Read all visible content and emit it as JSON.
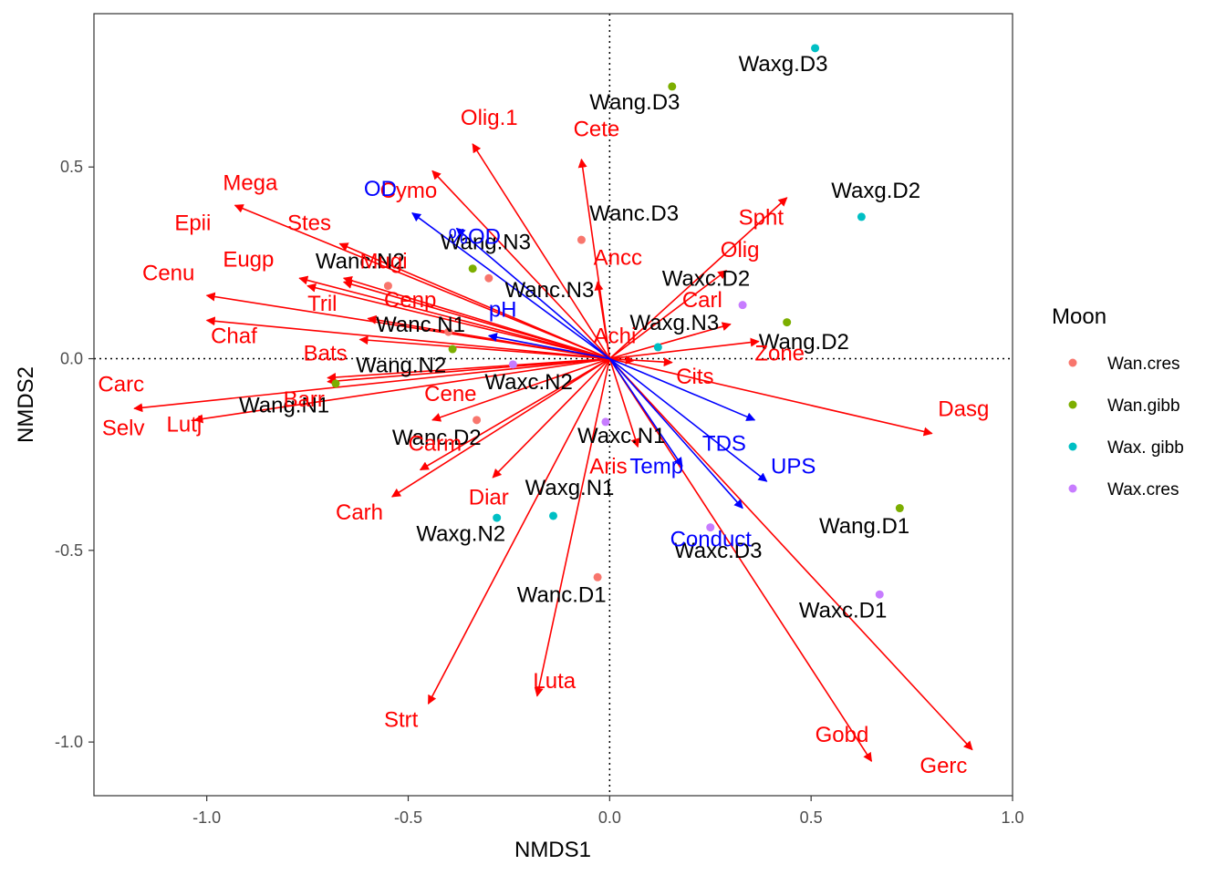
{
  "chart_data": {
    "type": "scatter",
    "xlabel": "NMDS1",
    "ylabel": "NMDS2",
    "xlim": [
      -1.28,
      1.0
    ],
    "ylim": [
      -1.14,
      0.9
    ],
    "x_ticks": [
      -1.0,
      -0.5,
      0.0,
      0.5,
      1.0
    ],
    "x_tick_labels": [
      "-1.0",
      "-0.5",
      "0.0",
      "0.5",
      "1.0"
    ],
    "y_ticks": [
      -1.0,
      -0.5,
      0.0,
      0.5
    ],
    "y_tick_labels": [
      "-1.0",
      "-0.5",
      "0.0",
      "0.5"
    ],
    "grid": false,
    "reference_lines": {
      "x": 0,
      "y": 0,
      "style": "dotted"
    },
    "legend": {
      "title": "Moon",
      "placement": "right",
      "entries": [
        {
          "name": "Wan.cres",
          "color": "#F8766D"
        },
        {
          "name": "Wan.gibb",
          "color": "#7CAE00"
        },
        {
          "name": "Wax. gibb",
          "color": "#00BFC4"
        },
        {
          "name": "Wax.cres",
          "color": "#C77CFF"
        }
      ]
    },
    "colors": {
      "species": "#ff0000",
      "environment": "#0000ff",
      "site_text": "#000000"
    },
    "sites": [
      {
        "label": "Wanc.D3",
        "group": "Wan.cres",
        "x": -0.07,
        "y": 0.31,
        "lx": -0.05,
        "ly": 0.36
      },
      {
        "label": "Wanc.N2",
        "group": "Wan.cres",
        "x": -0.55,
        "y": 0.19,
        "lx": -0.73,
        "ly": 0.235
      },
      {
        "label": "Wanc.N3",
        "group": "Wan.cres",
        "x": -0.3,
        "y": 0.21,
        "lx": -0.26,
        "ly": 0.16
      },
      {
        "label": "Wanc.N1",
        "group": "Wan.cres",
        "x": -0.4,
        "y": 0.07,
        "lx": -0.58,
        "ly": 0.07
      },
      {
        "label": "Wanc.D2",
        "group": "Wan.cres",
        "x": -0.33,
        "y": -0.16,
        "lx": -0.54,
        "ly": -0.225
      },
      {
        "label": "Wanc.D1",
        "group": "Wan.cres",
        "x": -0.03,
        "y": -0.57,
        "lx": -0.23,
        "ly": -0.635
      },
      {
        "label": "Wang.D3",
        "group": "Wan.gibb",
        "x": 0.155,
        "y": 0.71,
        "lx": -0.05,
        "ly": 0.65
      },
      {
        "label": "Wang.N3",
        "group": "Wan.gibb",
        "x": -0.34,
        "y": 0.235,
        "lx": -0.42,
        "ly": 0.285
      },
      {
        "label": "Wang.N2",
        "group": "Wan.gibb",
        "x": -0.39,
        "y": 0.025,
        "lx": -0.63,
        "ly": -0.035
      },
      {
        "label": "Wang.N1",
        "group": "Wan.gibb",
        "x": -0.68,
        "y": -0.065,
        "lx": -0.92,
        "ly": -0.14
      },
      {
        "label": "Wang.D2",
        "group": "Wan.gibb",
        "x": 0.44,
        "y": 0.095,
        "lx": 0.37,
        "ly": 0.025
      },
      {
        "label": "Wang.D1",
        "group": "Wan.gibb",
        "x": 0.72,
        "y": -0.39,
        "lx": 0.52,
        "ly": -0.455
      },
      {
        "label": "Waxg.D3",
        "group": "Wax. gibb",
        "x": 0.51,
        "y": 0.81,
        "lx": 0.32,
        "ly": 0.75
      },
      {
        "label": "Waxg.D2",
        "group": "Wax. gibb",
        "x": 0.625,
        "y": 0.37,
        "lx": 0.55,
        "ly": 0.42
      },
      {
        "label": "Waxg.N3",
        "group": "Wax. gibb",
        "x": 0.12,
        "y": 0.03,
        "lx": 0.05,
        "ly": 0.075
      },
      {
        "label": "Waxg.N1",
        "group": "Wax. gibb",
        "x": -0.14,
        "y": -0.41,
        "lx": -0.21,
        "ly": -0.355
      },
      {
        "label": "Waxg.N2",
        "group": "Wax. gibb",
        "x": -0.28,
        "y": -0.415,
        "lx": -0.48,
        "ly": -0.475
      },
      {
        "label": "Waxc.D2",
        "group": "Wax.cres",
        "x": 0.33,
        "y": 0.14,
        "lx": 0.13,
        "ly": 0.19
      },
      {
        "label": "Waxc.N2",
        "group": "Wax.cres",
        "x": -0.24,
        "y": -0.015,
        "lx": -0.31,
        "ly": -0.08
      },
      {
        "label": "Waxc.N1",
        "group": "Wax.cres",
        "x": -0.01,
        "y": -0.165,
        "lx": -0.08,
        "ly": -0.22
      },
      {
        "label": "Waxc.D3",
        "group": "Wax.cres",
        "x": 0.25,
        "y": -0.44,
        "lx": 0.16,
        "ly": -0.52
      },
      {
        "label": "Waxc.D1",
        "group": "Wax.cres",
        "x": 0.67,
        "y": -0.615,
        "lx": 0.47,
        "ly": -0.675
      }
    ],
    "species_vectors": [
      {
        "label": "Olig.1",
        "x": -0.34,
        "y": 0.56,
        "lx": -0.37,
        "ly": 0.61
      },
      {
        "label": "Cete",
        "x": -0.07,
        "y": 0.52,
        "lx": -0.09,
        "ly": 0.58
      },
      {
        "label": "Mega",
        "x": -0.93,
        "y": 0.4,
        "lx": -0.96,
        "ly": 0.44
      },
      {
        "label": "Cymo",
        "x": -0.44,
        "y": 0.49,
        "lx": -0.57,
        "ly": 0.42
      },
      {
        "label": "Epii",
        "x": -0.66,
        "y": 0.2,
        "lx": -1.08,
        "ly": 0.335
      },
      {
        "label": "Stes",
        "x": -0.67,
        "y": 0.3,
        "lx": -0.8,
        "ly": 0.335
      },
      {
        "label": "Eugp",
        "x": -0.77,
        "y": 0.21,
        "lx": -0.96,
        "ly": 0.24
      },
      {
        "label": "Mugi",
        "x": -0.66,
        "y": 0.21,
        "lx": -0.62,
        "ly": 0.235
      },
      {
        "label": "Cenu",
        "x": -1.0,
        "y": 0.165,
        "lx": -1.16,
        "ly": 0.205
      },
      {
        "label": "Tril",
        "x": -0.75,
        "y": 0.19,
        "lx": -0.75,
        "ly": 0.125
      },
      {
        "label": "Cenp",
        "x": -0.6,
        "y": 0.105,
        "lx": -0.56,
        "ly": 0.135
      },
      {
        "label": "Chaf",
        "x": -1.0,
        "y": 0.1,
        "lx": -0.99,
        "ly": 0.04
      },
      {
        "label": "Bats",
        "x": -0.62,
        "y": 0.05,
        "lx": -0.76,
        "ly": -0.005
      },
      {
        "label": "Carc",
        "x": -1.18,
        "y": -0.13,
        "lx": -1.27,
        "ly": -0.085
      },
      {
        "label": "Selv",
        "x": -0.7,
        "y": -0.05,
        "lx": -1.26,
        "ly": -0.2
      },
      {
        "label": "Lutj",
        "x": -1.03,
        "y": -0.16,
        "lx": -1.1,
        "ly": -0.19
      },
      {
        "label": "Barr",
        "x": -0.7,
        "y": -0.06,
        "lx": -0.81,
        "ly": -0.125
      },
      {
        "label": "Cene",
        "x": -0.44,
        "y": -0.16,
        "lx": -0.46,
        "ly": -0.11
      },
      {
        "label": "Carm",
        "x": -0.47,
        "y": -0.29,
        "lx": -0.5,
        "ly": -0.24
      },
      {
        "label": "Carh",
        "x": -0.54,
        "y": -0.36,
        "lx": -0.68,
        "ly": -0.42
      },
      {
        "label": "Diar",
        "x": -0.29,
        "y": -0.31,
        "lx": -0.35,
        "ly": -0.38
      },
      {
        "label": "Luta",
        "x": -0.18,
        "y": -0.88,
        "lx": -0.19,
        "ly": -0.86
      },
      {
        "label": "Strt",
        "x": -0.45,
        "y": -0.9,
        "lx": -0.56,
        "ly": -0.96
      },
      {
        "label": "Aris",
        "x": 0.07,
        "y": -0.23,
        "lx": -0.05,
        "ly": -0.3
      },
      {
        "label": "Ancc",
        "x": -0.03,
        "y": 0.2,
        "lx": -0.04,
        "ly": 0.245
      },
      {
        "label": "Achi",
        "x": 0.06,
        "y": -0.005,
        "lx": -0.04,
        "ly": 0.04
      },
      {
        "label": "Olig",
        "x": 0.29,
        "y": 0.23,
        "lx": 0.275,
        "ly": 0.265
      },
      {
        "label": "Carl",
        "x": 0.3,
        "y": 0.09,
        "lx": 0.18,
        "ly": 0.135
      },
      {
        "label": "Spht",
        "x": 0.44,
        "y": 0.42,
        "lx": 0.32,
        "ly": 0.35
      },
      {
        "label": "Zone",
        "x": 0.37,
        "y": 0.045,
        "lx": 0.36,
        "ly": -0.005
      },
      {
        "label": "Cits",
        "x": 0.155,
        "y": -0.01,
        "lx": 0.165,
        "ly": -0.065
      },
      {
        "label": "Dasg",
        "x": 0.8,
        "y": -0.195,
        "lx": 0.815,
        "ly": -0.15
      },
      {
        "label": "Gobd",
        "x": 0.65,
        "y": -1.05,
        "lx": 0.51,
        "ly": -1.0
      },
      {
        "label": "Gerc",
        "x": 0.9,
        "y": -1.02,
        "lx": 0.77,
        "ly": -1.08
      }
    ],
    "environment_vectors": [
      {
        "label": "OD",
        "x": -0.49,
        "y": 0.38,
        "lx": -0.61,
        "ly": 0.425
      },
      {
        "label": "%OD",
        "x": -0.38,
        "y": 0.34,
        "lx": -0.4,
        "ly": 0.3
      },
      {
        "label": "pH",
        "x": -0.3,
        "y": 0.06,
        "lx": -0.3,
        "ly": 0.11
      },
      {
        "label": "TDS",
        "x": 0.36,
        "y": -0.16,
        "lx": 0.23,
        "ly": -0.24
      },
      {
        "label": "UPS",
        "x": 0.39,
        "y": -0.32,
        "lx": 0.4,
        "ly": -0.3
      },
      {
        "label": "Temp",
        "x": 0.18,
        "y": -0.28,
        "lx": 0.05,
        "ly": -0.3
      },
      {
        "label": "Conduct",
        "x": 0.33,
        "y": -0.39,
        "lx": 0.15,
        "ly": -0.49
      }
    ]
  }
}
